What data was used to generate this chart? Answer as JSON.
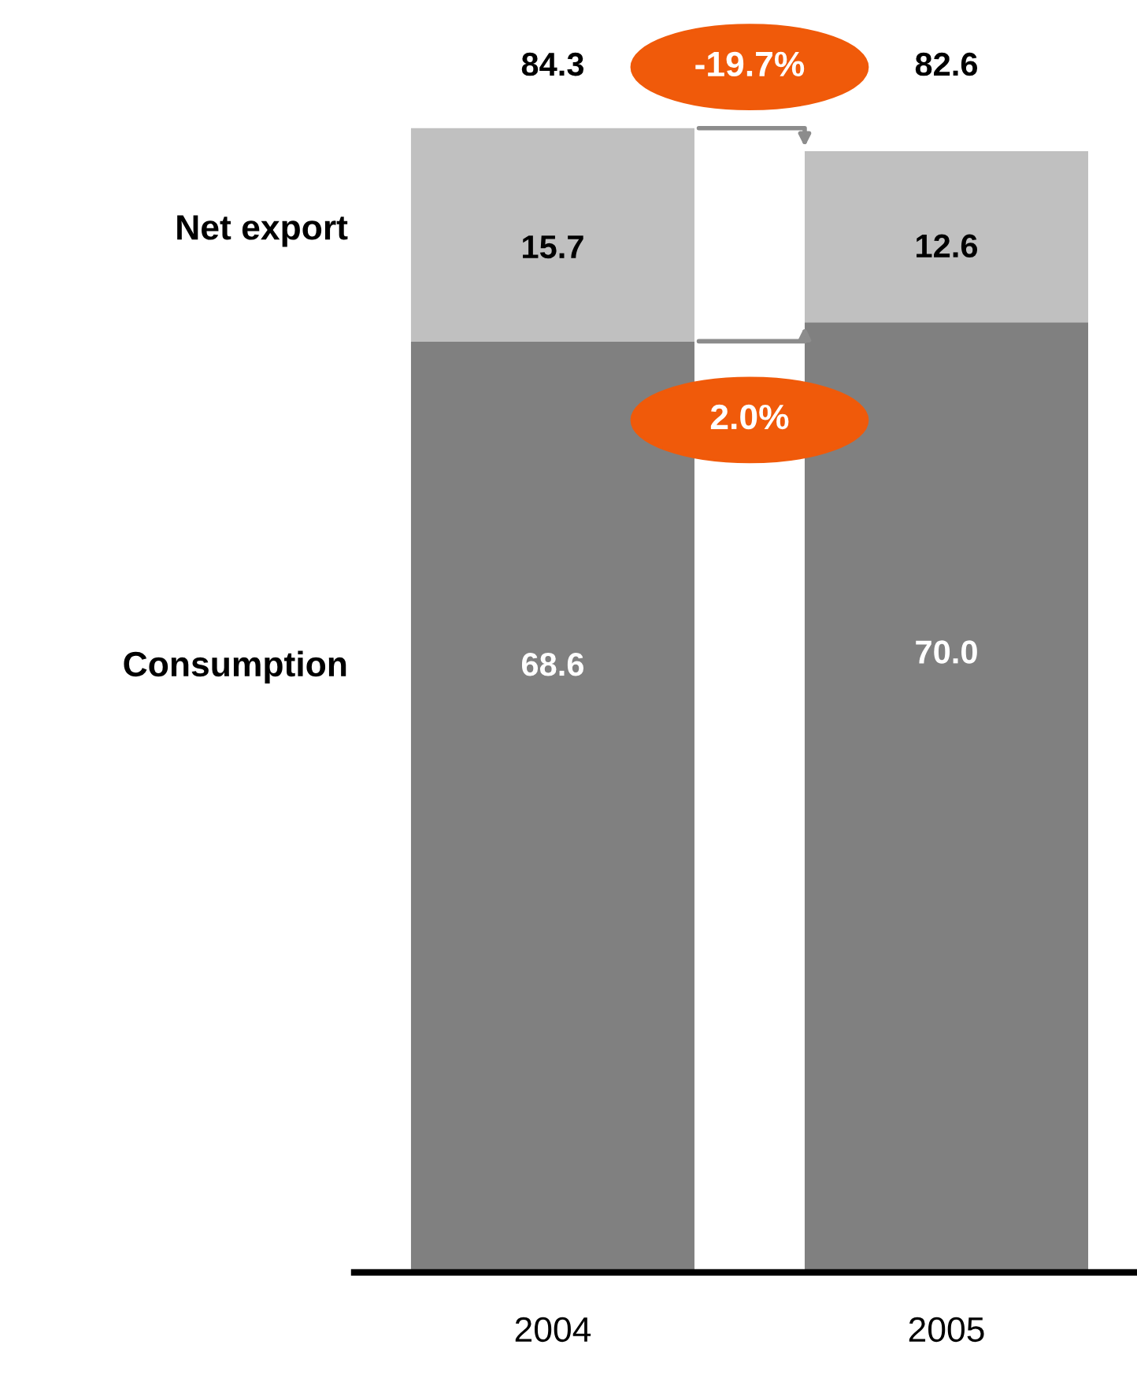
{
  "chart_data": {
    "type": "bar",
    "stacked": true,
    "categories": [
      "2004",
      "2005"
    ],
    "series": [
      {
        "name": "Consumption",
        "color": "#808080",
        "values": [
          68.6,
          70.0
        ],
        "value_labels": [
          "68.6",
          "70.0"
        ]
      },
      {
        "name": "Net export",
        "color": "#c0c0c0",
        "values": [
          15.7,
          12.6
        ],
        "value_labels": [
          "15.7",
          "12.6"
        ]
      }
    ],
    "totals": [
      "84.3",
      "82.6"
    ],
    "annotations": [
      "-19.7%",
      "2.0%"
    ],
    "legend": false,
    "grid": false
  }
}
